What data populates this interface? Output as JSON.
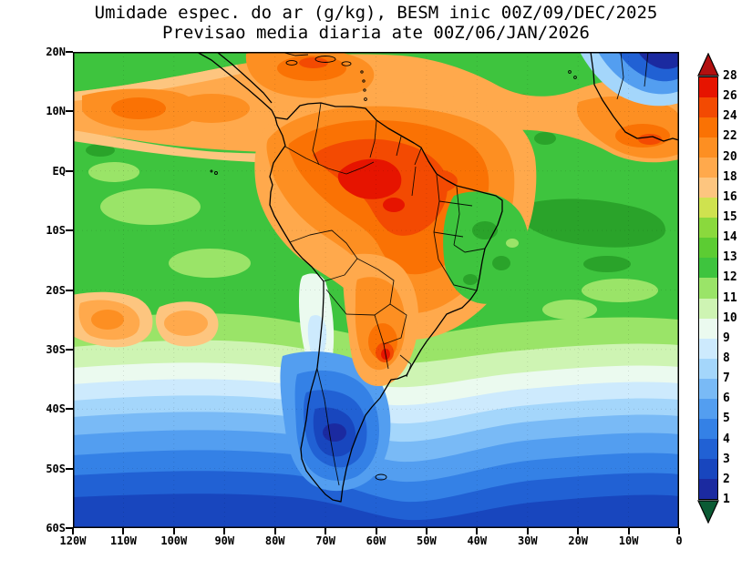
{
  "title": {
    "line1": "Umidade espec. do ar (g/kg), BESM inic 00Z/09/DEC/2025",
    "line2": "Previsao media diaria ate 00Z/06/JAN/2026"
  },
  "y_axis": {
    "ticks": [
      "20N",
      "10N",
      "EQ",
      "10S",
      "20S",
      "30S",
      "40S",
      "50S",
      "60S"
    ]
  },
  "x_axis": {
    "ticks": [
      "120W",
      "110W",
      "100W",
      "90W",
      "80W",
      "70W",
      "60W",
      "50W",
      "40W",
      "30W",
      "20W",
      "10W",
      "0"
    ]
  },
  "colorbar": {
    "labels": [
      "28",
      "26",
      "24",
      "22",
      "20",
      "18",
      "16",
      "15",
      "14",
      "13",
      "12",
      "11",
      "10",
      "9",
      "8",
      "7",
      "6",
      "5",
      "4",
      "3",
      "2",
      "1"
    ],
    "segment_colors": [
      "#e61400",
      "#f34a02",
      "#fa7204",
      "#fd8f22",
      "#ffa94c",
      "#fdc57f",
      "#cfe24f",
      "#8ad93d",
      "#5ccc33",
      "#3ec43e",
      "#9ae468",
      "#cef4b3",
      "#ebfaef",
      "#cdeafd",
      "#a4d6fb",
      "#79baf6",
      "#539ef0",
      "#3481e6",
      "#2161d4",
      "#1846be",
      "#1b2aa0"
    ],
    "top_arrow_color": "#b21010",
    "bottom_arrow_color": "#0b5b34"
  }
}
